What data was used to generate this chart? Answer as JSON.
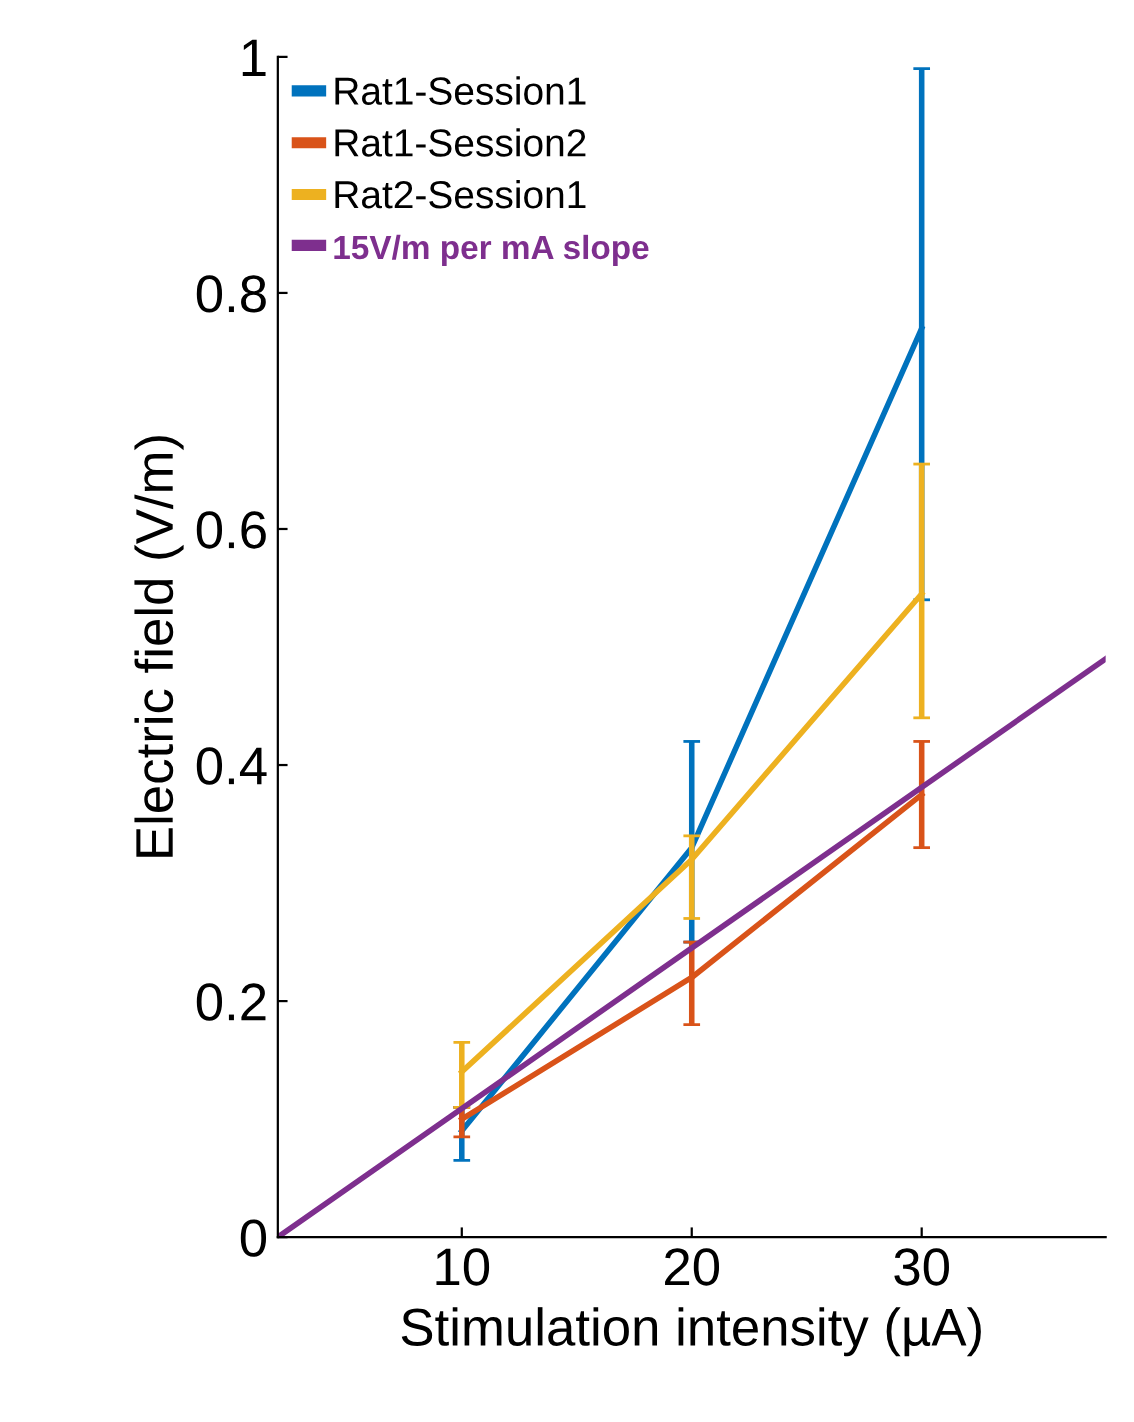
{
  "chart_data": {
    "type": "line",
    "xlabel": "Stimulation intensity (µA)",
    "ylabel": "Electric field (V/m)",
    "x": [
      10,
      20,
      30
    ],
    "series": [
      {
        "name": "Rat1-Session1",
        "color": "#0072bd",
        "values": [
          0.09,
          0.33,
          0.77
        ],
        "errors": [
          [
            0.065,
            0.11
          ],
          [
            0.25,
            0.42
          ],
          [
            0.54,
            0.99
          ]
        ]
      },
      {
        "name": "Rat1-Session2",
        "color": "#d95319",
        "values": [
          0.1,
          0.22,
          0.375
        ],
        "errors": [
          [
            0.085,
            0.11
          ],
          [
            0.18,
            0.25
          ],
          [
            0.33,
            0.42
          ]
        ]
      },
      {
        "name": "Rat2-Session1",
        "color": "#edb120",
        "values": [
          0.14,
          0.32,
          0.545
        ],
        "errors": [
          [
            0.11,
            0.165
          ],
          [
            0.27,
            0.34
          ],
          [
            0.44,
            0.655
          ]
        ]
      },
      {
        "name": "15V/m per mA slope",
        "color": "#7e2f8e",
        "x": [
          2,
          38
        ],
        "values": [
          0,
          0.49
        ]
      }
    ],
    "xlim": [
      2,
      38
    ],
    "ylim": [
      0,
      1
    ],
    "xticks": [
      10,
      20,
      30
    ],
    "yticks": [
      0,
      0.2,
      0.4,
      0.6,
      0.8,
      1
    ],
    "legend": "top left",
    "grid": false,
    "marker": "none",
    "line_style": "solid"
  }
}
